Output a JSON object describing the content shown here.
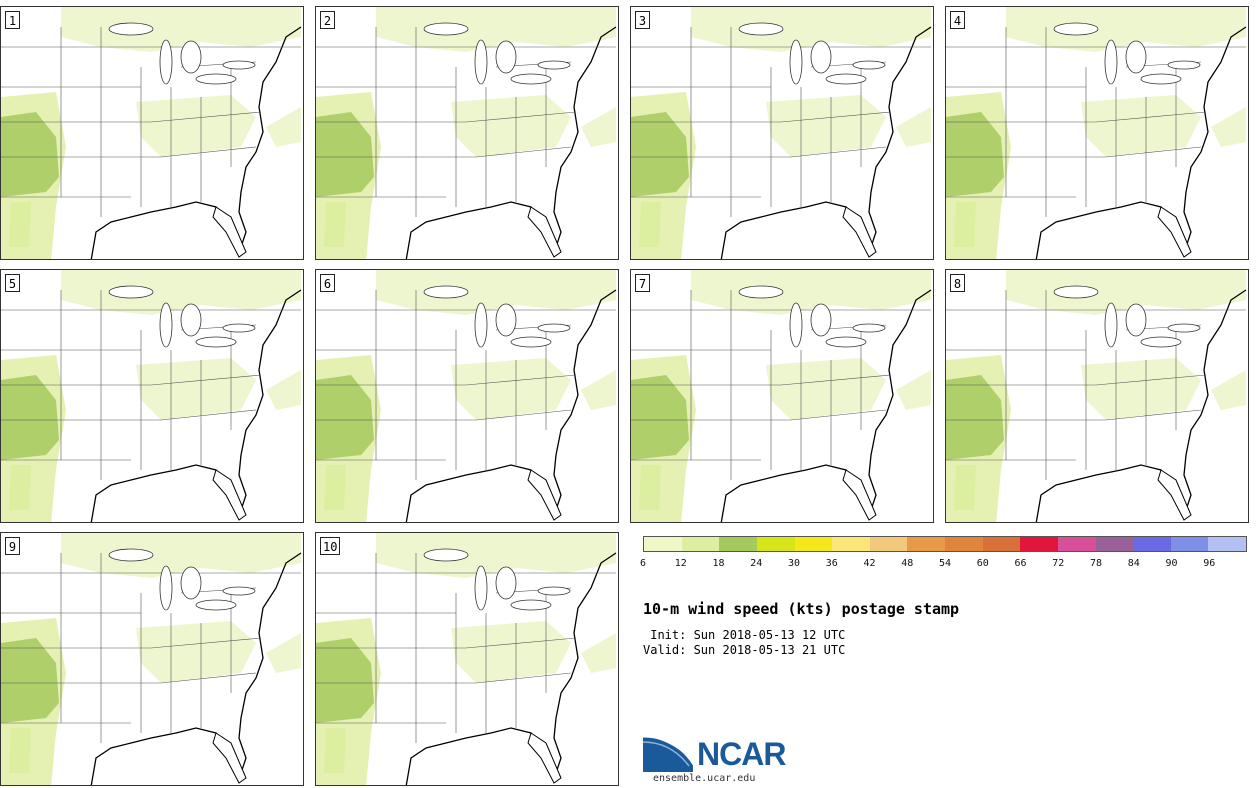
{
  "title": "10-m wind speed (kts) postage stamp",
  "init_line": " Init: Sun 2018-05-13 12 UTC",
  "valid_line": "Valid: Sun 2018-05-13 21 UTC",
  "panels": [
    "1",
    "2",
    "3",
    "4",
    "5",
    "6",
    "7",
    "8",
    "9",
    "10"
  ],
  "colorbar": {
    "tick_labels": [
      "6",
      "12",
      "18",
      "24",
      "30",
      "36",
      "42",
      "48",
      "54",
      "60",
      "66",
      "72",
      "78",
      "84",
      "90",
      "96"
    ],
    "colors": [
      "#f0f7c6",
      "#dcefa0",
      "#a4c95c",
      "#d6e41a",
      "#f4e81a",
      "#fbe67a",
      "#f2c87a",
      "#e99a48",
      "#e2853c",
      "#d9703a",
      "#e3153c",
      "#d9509a",
      "#9a6098",
      "#6a6ae4",
      "#7f8fe8",
      "#b2c0f2"
    ]
  },
  "logo": {
    "name": "NCAR",
    "site": "ensemble.ucar.edu",
    "color": "#1a5a9a"
  }
}
